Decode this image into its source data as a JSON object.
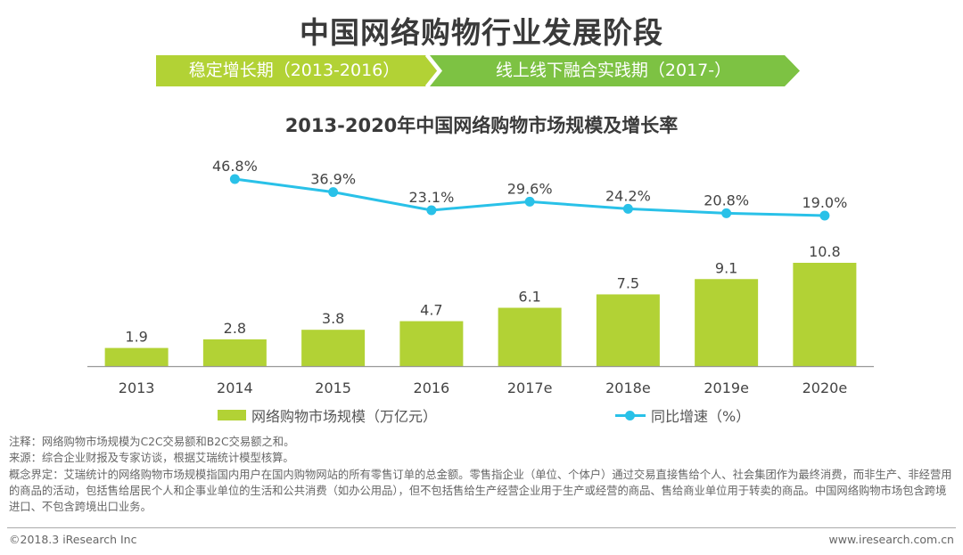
{
  "header": {
    "title": "中国网络购物行业发展阶段",
    "stages": [
      {
        "label": "稳定增长期（2013-2016）",
        "color": "#b2d235"
      },
      {
        "label": "线上线下融合实践期（2017-）",
        "color": "#7dc243"
      }
    ]
  },
  "chart_data": {
    "type": "bar+line",
    "title": "2013-2020年中国网络购物市场规模及增长率",
    "categories": [
      "2013",
      "2014",
      "2015",
      "2016",
      "2017e",
      "2018e",
      "2019e",
      "2020e"
    ],
    "series": [
      {
        "name": "网络购物市场规模（万亿元）",
        "type": "bar",
        "color": "#b2d235",
        "values": [
          1.9,
          2.8,
          3.8,
          4.7,
          6.1,
          7.5,
          9.1,
          10.8
        ],
        "labels": [
          "1.9",
          "2.8",
          "3.8",
          "4.7",
          "6.1",
          "7.5",
          "9.1",
          "10.8"
        ]
      },
      {
        "name": "同比增速（%）",
        "type": "line",
        "color": "#29c1e8",
        "x": [
          "2014",
          "2015",
          "2016",
          "2017e",
          "2018e",
          "2019e",
          "2020e"
        ],
        "values": [
          46.8,
          36.9,
          23.1,
          29.6,
          24.2,
          20.8,
          19.0
        ],
        "labels": [
          "46.8%",
          "36.9%",
          "23.1%",
          "29.6%",
          "24.2%",
          "20.8%",
          "19.0%"
        ]
      }
    ],
    "xlabel": "",
    "ylabel": "",
    "y_left_range": [
      0,
      11
    ],
    "y_right_range": [
      0,
      50
    ],
    "grid": false,
    "legend_position": "bottom"
  },
  "legend": {
    "bar_label": "网络购物市场规模（万亿元）",
    "line_label": "同比增速（%）"
  },
  "notes": {
    "note": "注释：网络购物市场规模为C2C交易额和B2C交易额之和。",
    "source": "来源：综合企业财报及专家访谈，根据艾瑞统计模型核算。",
    "definition": "概念界定：艾瑞统计的网络购物市场规模指国内用户在国内购物网站的所有零售订单的总金额。零售指企业（单位、个体户）通过交易直接售给个人、社会集团作为最终消费，而非生产、非经营用的商品的活动，包括售给居民个人和企事业单位的生活和公共消费（如办公用品），但不包括售给生产经营企业用于生产或经营的商品、售给商业单位用于转卖的商品。中国网络购物市场包含跨境进口、不包含跨境出口业务。"
  },
  "footer": {
    "copyright": "©2018.3 iResearch Inc",
    "website": "www.iresearch.com.cn"
  }
}
